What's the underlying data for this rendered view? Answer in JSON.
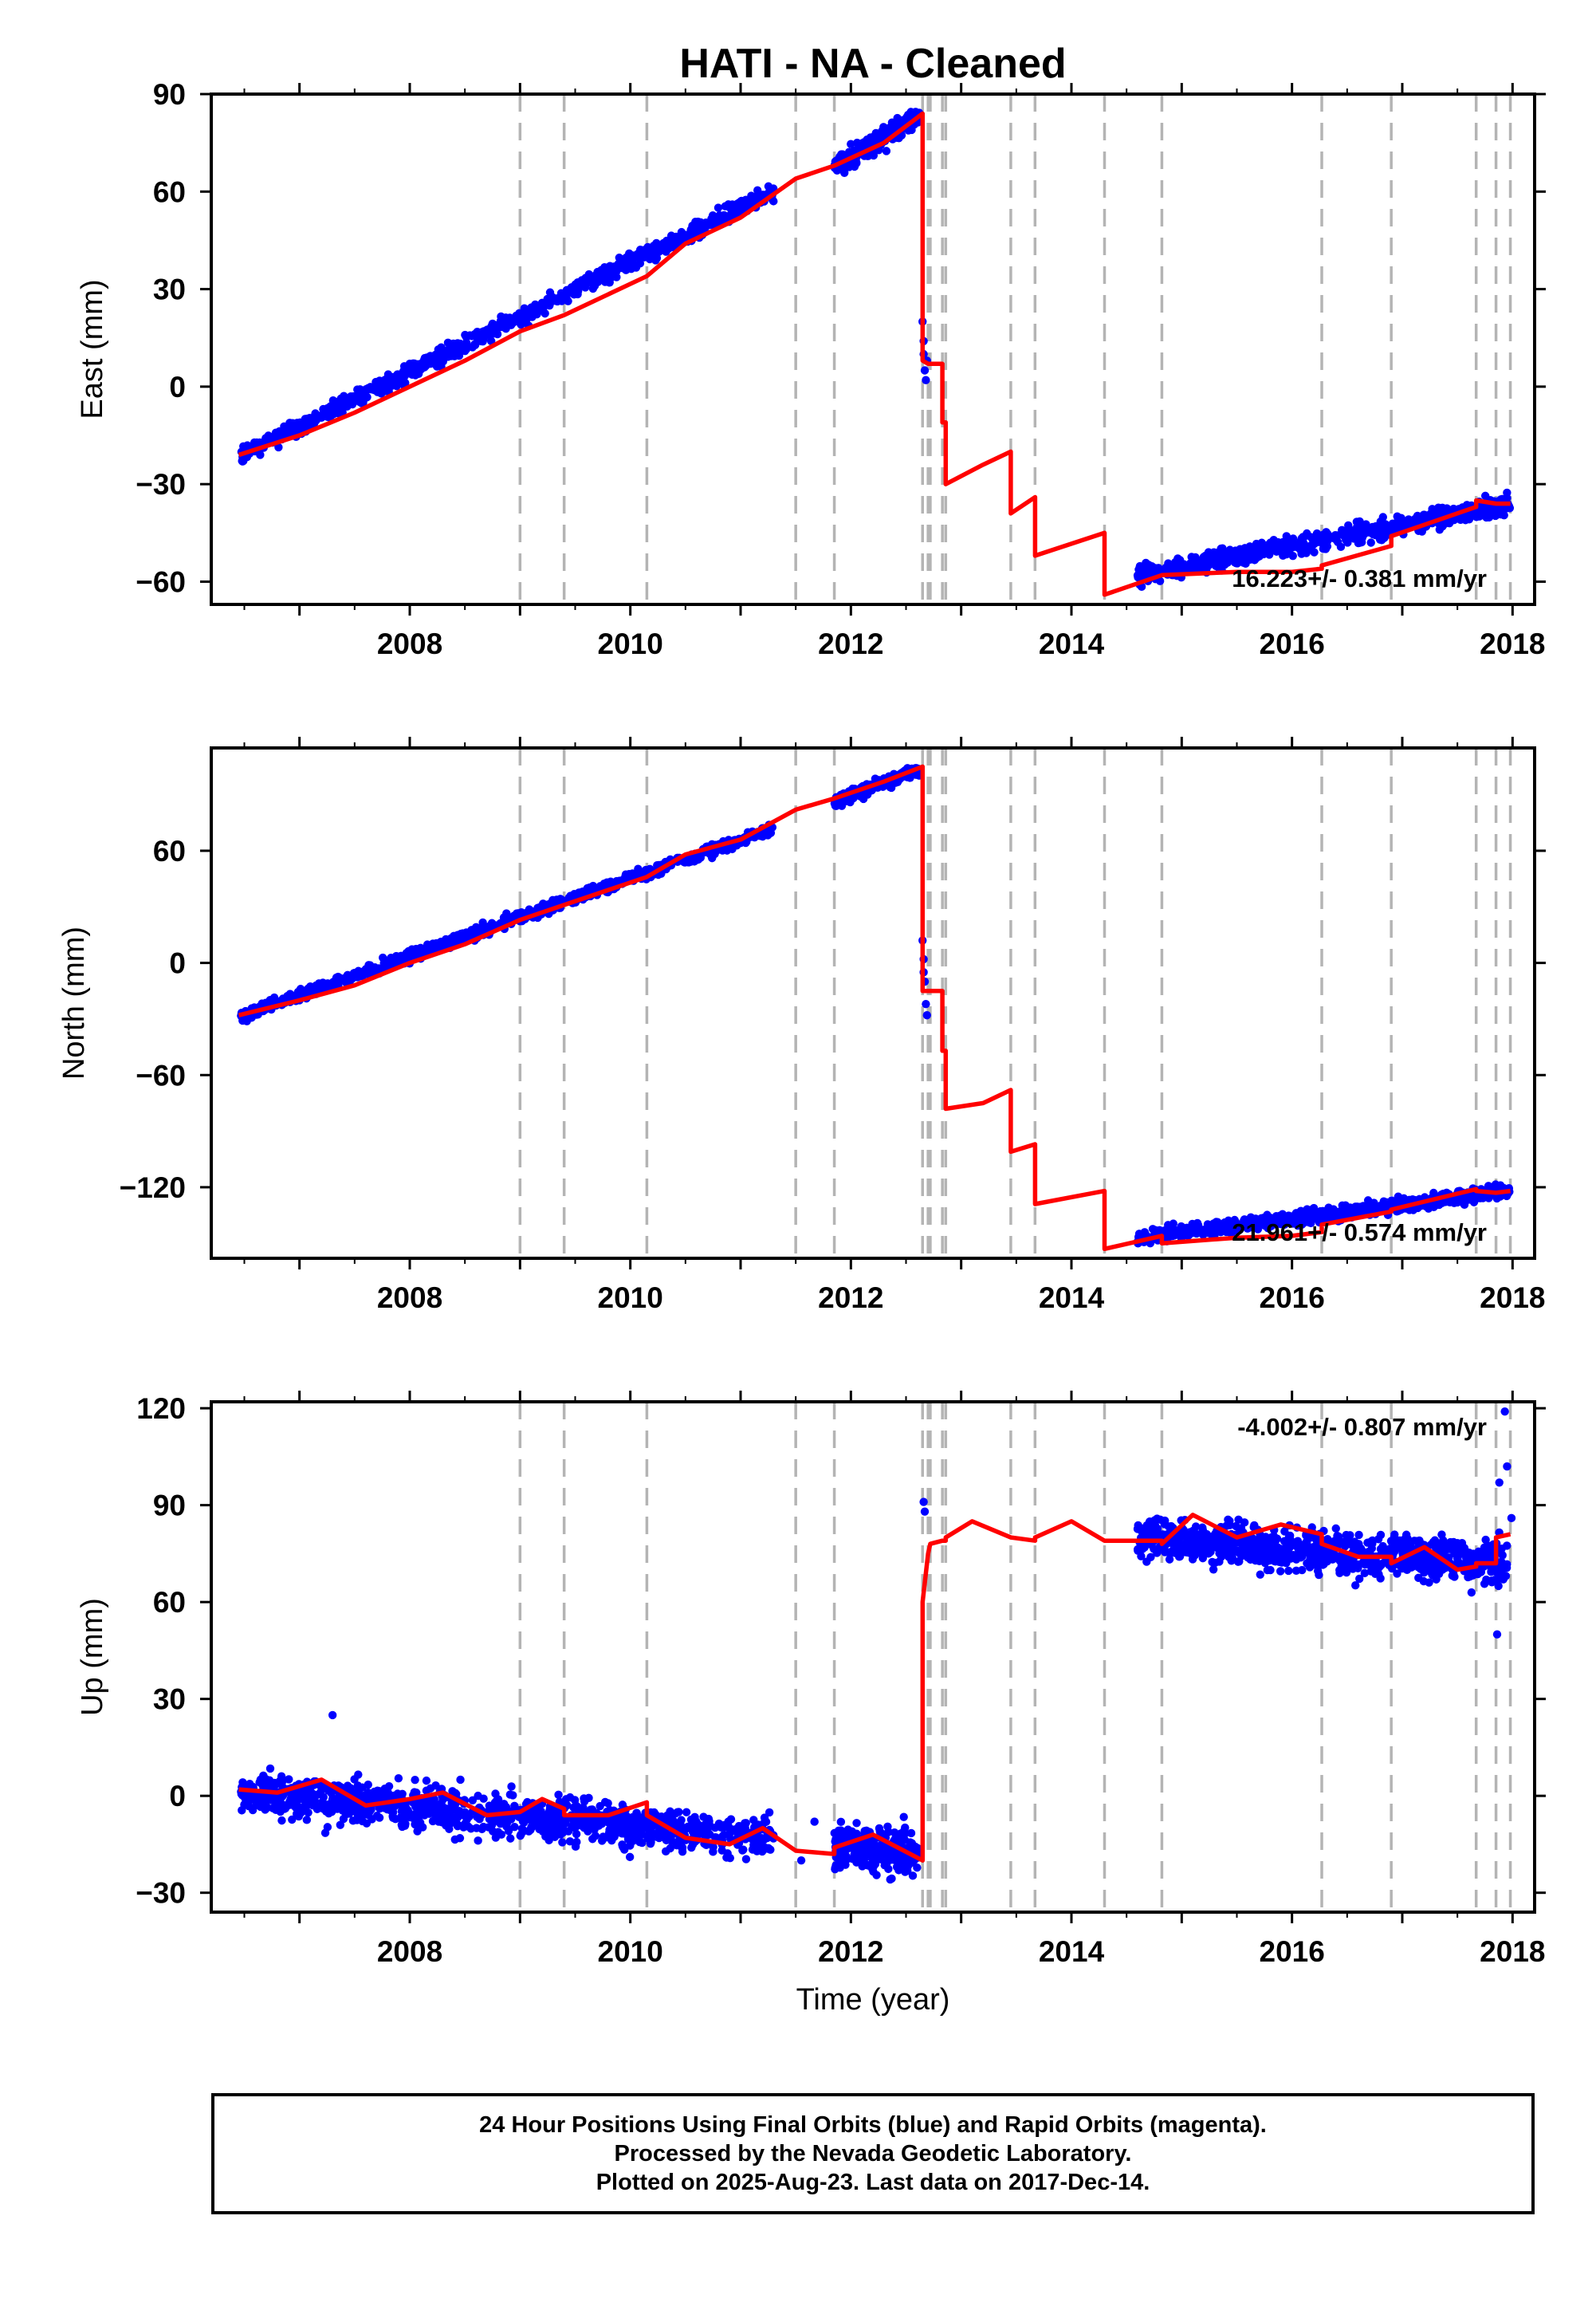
{
  "title": "HATI  - NA - Cleaned",
  "xlabel": "Time (year)",
  "colors": {
    "final_orbits": "#0000ff",
    "model_fit": "#ff0000",
    "offset_lines": "#b4b4b4"
  },
  "footer": {
    "line1": "24 Hour Positions Using Final Orbits (blue) and Rapid Orbits (magenta).",
    "line2": "Processed by the Nevada Geodetic Laboratory.",
    "line3": "Plotted on 2025-Aug-23. Last data on 2017-Dec-14."
  },
  "chart_data": [
    {
      "type": "scatter",
      "name": "East",
      "ylabel": "East (mm)",
      "rate_label": "16.223+/- 0.381 mm/yr",
      "xlim": [
        2006.2,
        2018.2
      ],
      "ylim": [
        -67,
        90
      ],
      "xticks": [
        2008,
        2010,
        2012,
        2014,
        2016,
        2018
      ],
      "yticks": [
        -60,
        -30,
        0,
        30,
        60,
        90
      ],
      "ytick_labels": [
        "−60",
        "−30",
        "0",
        "30",
        "60",
        "90"
      ],
      "grid": false,
      "offset_lines": [
        2009.0,
        2009.4,
        2010.15,
        2011.5,
        2011.85,
        2012.65,
        2012.7,
        2012.72,
        2012.83,
        2012.86,
        2013.45,
        2013.67,
        2014.3,
        2014.82,
        2016.27,
        2016.9,
        2017.67,
        2017.85,
        2017.98
      ],
      "fit_segments": [
        {
          "x": [
            2006.45,
            2007.0,
            2007.5,
            2008.0,
            2008.5,
            2009.0,
            2009.4,
            2010.15,
            2010.5,
            2011.0,
            2011.5,
            2011.85,
            2012.3,
            2012.65
          ],
          "y": [
            -21,
            -15,
            -8,
            0,
            8,
            17,
            22,
            34,
            44,
            52,
            64,
            68,
            75,
            84
          ]
        },
        {
          "x": [
            2012.65,
            2012.7,
            2012.72
          ],
          "y": [
            8,
            7,
            7
          ]
        },
        {
          "x": [
            2012.72,
            2012.83
          ],
          "y": [
            7,
            7
          ]
        },
        {
          "x": [
            2012.83,
            2012.86
          ],
          "y": [
            -11,
            -11
          ]
        },
        {
          "x": [
            2012.86,
            2013.2,
            2013.45
          ],
          "y": [
            -30,
            -24,
            -20
          ]
        },
        {
          "x": [
            2013.45,
            2013.67
          ],
          "y": [
            -39,
            -34
          ]
        },
        {
          "x": [
            2013.67,
            2014.3
          ],
          "y": [
            -52,
            -45
          ]
        },
        {
          "x": [
            2014.3,
            2014.82
          ],
          "y": [
            -64,
            -58
          ]
        },
        {
          "x": [
            2014.82,
            2015.5,
            2016.0,
            2016.27
          ],
          "y": [
            -58,
            -57,
            -57,
            -56
          ]
        },
        {
          "x": [
            2016.27,
            2016.9
          ],
          "y": [
            -55,
            -49
          ]
        },
        {
          "x": [
            2016.9,
            2017.67
          ],
          "y": [
            -46,
            -37
          ]
        },
        {
          "x": [
            2017.67,
            2017.85
          ],
          "y": [
            -35,
            -36
          ]
        },
        {
          "x": [
            2017.85,
            2017.98
          ],
          "y": [
            -36,
            -36
          ]
        }
      ],
      "obs_segments": [
        {
          "x0": 2006.47,
          "x1": 2011.3,
          "y0": -21,
          "y1": 60,
          "noise": 2.2,
          "count": 900
        },
        {
          "x0": 2011.85,
          "x1": 2012.62,
          "y0": 68,
          "y1": 83,
          "noise": 2.5,
          "count": 230
        },
        {
          "x0": 2014.6,
          "x1": 2017.98,
          "y0": -58,
          "y1": -36,
          "noise": 2.5,
          "count": 700
        }
      ],
      "obs_points": [
        [
          2012.65,
          20
        ],
        [
          2012.66,
          14
        ],
        [
          2012.67,
          5
        ],
        [
          2012.68,
          2
        ],
        [
          2012.69,
          8
        ],
        [
          2012.66,
          10
        ]
      ]
    },
    {
      "type": "scatter",
      "name": "North",
      "ylabel": "North (mm)",
      "rate_label": "21.961+/- 0.574 mm/yr",
      "xlim": [
        2006.2,
        2018.2
      ],
      "ylim": [
        -158,
        115
      ],
      "xticks": [
        2008,
        2010,
        2012,
        2014,
        2016,
        2018
      ],
      "yticks": [
        -120,
        -60,
        0,
        60
      ],
      "ytick_labels": [
        "−120",
        "−60",
        "0",
        "60"
      ],
      "grid": false,
      "offset_lines": [
        2009.0,
        2009.4,
        2010.15,
        2011.5,
        2011.85,
        2012.65,
        2012.7,
        2012.72,
        2012.83,
        2012.86,
        2013.45,
        2013.67,
        2014.3,
        2014.82,
        2016.27,
        2016.9,
        2017.67,
        2017.85,
        2017.98
      ],
      "fit_segments": [
        {
          "x": [
            2006.45,
            2007.0,
            2007.5,
            2008.0,
            2008.5,
            2009.0,
            2009.4,
            2010.15,
            2010.5,
            2011.0,
            2011.5,
            2011.85,
            2012.3,
            2012.65
          ],
          "y": [
            -28,
            -20,
            -12,
            0,
            10,
            23,
            31,
            46,
            58,
            66,
            82,
            88,
            97,
            105
          ]
        },
        {
          "x": [
            2012.65,
            2012.7,
            2012.72
          ],
          "y": [
            -15,
            -15,
            -15
          ]
        },
        {
          "x": [
            2012.72,
            2012.83
          ],
          "y": [
            -15,
            -15
          ]
        },
        {
          "x": [
            2012.83,
            2012.86
          ],
          "y": [
            -47,
            -47
          ]
        },
        {
          "x": [
            2012.86,
            2013.2,
            2013.45
          ],
          "y": [
            -78,
            -75,
            -68
          ]
        },
        {
          "x": [
            2013.45,
            2013.67
          ],
          "y": [
            -101,
            -97
          ]
        },
        {
          "x": [
            2013.67,
            2014.3
          ],
          "y": [
            -129,
            -122
          ]
        },
        {
          "x": [
            2014.3,
            2014.82
          ],
          "y": [
            -153,
            -146
          ]
        },
        {
          "x": [
            2014.82,
            2015.5,
            2016.0,
            2016.27
          ],
          "y": [
            -150,
            -147,
            -146,
            -144
          ]
        },
        {
          "x": [
            2016.27,
            2016.9
          ],
          "y": [
            -140,
            -133
          ]
        },
        {
          "x": [
            2016.9,
            2017.67
          ],
          "y": [
            -132,
            -121
          ]
        },
        {
          "x": [
            2017.67,
            2017.85
          ],
          "y": [
            -122,
            -123
          ]
        },
        {
          "x": [
            2017.85,
            2017.98
          ],
          "y": [
            -123,
            -122
          ]
        }
      ],
      "obs_segments": [
        {
          "x0": 2006.47,
          "x1": 2011.3,
          "y0": -28,
          "y1": 72,
          "noise": 2.5,
          "count": 900
        },
        {
          "x0": 2011.85,
          "x1": 2012.62,
          "y0": 86,
          "y1": 104,
          "noise": 2.8,
          "count": 230
        },
        {
          "x0": 2014.6,
          "x1": 2017.98,
          "y0": -147,
          "y1": -122,
          "noise": 3.0,
          "count": 700
        }
      ],
      "obs_points": [
        [
          2012.65,
          12
        ],
        [
          2012.66,
          2
        ],
        [
          2012.67,
          -10
        ],
        [
          2012.68,
          -22
        ],
        [
          2012.69,
          -28
        ],
        [
          2012.66,
          -5
        ]
      ]
    },
    {
      "type": "scatter",
      "name": "Up",
      "ylabel": "Up (mm)",
      "rate_label": "-4.002+/- 0.807 mm/yr",
      "xlim": [
        2006.2,
        2018.2
      ],
      "ylim": [
        -36,
        122
      ],
      "xticks": [
        2008,
        2010,
        2012,
        2014,
        2016,
        2018
      ],
      "yticks": [
        -30,
        0,
        30,
        60,
        90,
        120
      ],
      "ytick_labels": [
        "−30",
        "0",
        "30",
        "60",
        "90",
        "120"
      ],
      "grid": false,
      "offset_lines": [
        2009.0,
        2009.4,
        2010.15,
        2011.5,
        2011.85,
        2012.65,
        2012.7,
        2012.72,
        2012.83,
        2012.86,
        2013.45,
        2013.67,
        2014.3,
        2014.82,
        2016.27,
        2016.9,
        2017.67,
        2017.85,
        2017.98
      ],
      "fit_segments": [
        {
          "x": [
            2006.45,
            2006.8,
            2007.2,
            2007.6,
            2008.0,
            2008.3,
            2008.7,
            2009.0
          ],
          "y": [
            2,
            1,
            5,
            -3,
            -1,
            1,
            -6,
            -5
          ]
        },
        {
          "x": [
            2009.0,
            2009.2,
            2009.4
          ],
          "y": [
            -5,
            -1,
            -4
          ]
        },
        {
          "x": [
            2009.4,
            2009.8,
            2010.15
          ],
          "y": [
            -6,
            -6,
            -2
          ]
        },
        {
          "x": [
            2010.15,
            2010.5,
            2010.9,
            2011.2,
            2011.5
          ],
          "y": [
            -6,
            -13,
            -15,
            -10,
            -17
          ]
        },
        {
          "x": [
            2011.5,
            2011.85
          ],
          "y": [
            -17,
            -18
          ]
        },
        {
          "x": [
            2011.85,
            2012.2,
            2012.65
          ],
          "y": [
            -16,
            -12,
            -20
          ]
        },
        {
          "x": [
            2012.65,
            2012.7,
            2012.72
          ],
          "y": [
            60,
            75,
            78
          ]
        },
        {
          "x": [
            2012.72,
            2012.83
          ],
          "y": [
            78,
            79
          ]
        },
        {
          "x": [
            2012.83,
            2012.86
          ],
          "y": [
            79,
            79
          ]
        },
        {
          "x": [
            2012.86,
            2013.1,
            2013.45
          ],
          "y": [
            80,
            85,
            80
          ]
        },
        {
          "x": [
            2013.45,
            2013.67
          ],
          "y": [
            80,
            79
          ]
        },
        {
          "x": [
            2013.67,
            2014.0,
            2014.3
          ],
          "y": [
            80,
            85,
            79
          ]
        },
        {
          "x": [
            2014.3,
            2014.82
          ],
          "y": [
            79,
            79
          ]
        },
        {
          "x": [
            2014.82,
            2015.1,
            2015.5,
            2015.9,
            2016.27
          ],
          "y": [
            78,
            87,
            80,
            84,
            81
          ]
        },
        {
          "x": [
            2016.27,
            2016.6,
            2016.9
          ],
          "y": [
            78,
            74,
            74
          ]
        },
        {
          "x": [
            2016.9,
            2017.2,
            2017.5,
            2017.67
          ],
          "y": [
            72,
            77,
            70,
            71
          ]
        },
        {
          "x": [
            2017.67,
            2017.85
          ],
          "y": [
            72,
            72
          ]
        },
        {
          "x": [
            2017.85,
            2017.98
          ],
          "y": [
            80,
            81
          ]
        }
      ],
      "obs_segments": [
        {
          "x0": 2006.47,
          "x1": 2011.3,
          "y0": 1,
          "y1": -13,
          "noise": 5.5,
          "count": 1100
        },
        {
          "x0": 2011.85,
          "x1": 2012.62,
          "y0": -16,
          "y1": -18,
          "noise": 5.5,
          "count": 260
        },
        {
          "x0": 2014.6,
          "x1": 2017.95,
          "y0": 80,
          "y1": 72,
          "noise": 5.5,
          "count": 900
        }
      ],
      "obs_points": [
        [
          2012.66,
          91
        ],
        [
          2012.67,
          88
        ],
        [
          2017.93,
          119
        ],
        [
          2017.95,
          102
        ],
        [
          2017.88,
          97
        ],
        [
          2017.86,
          50
        ],
        [
          2017.99,
          86
        ],
        [
          2007.3,
          25
        ],
        [
          2011.67,
          -8
        ],
        [
          2011.55,
          -20
        ]
      ]
    }
  ]
}
